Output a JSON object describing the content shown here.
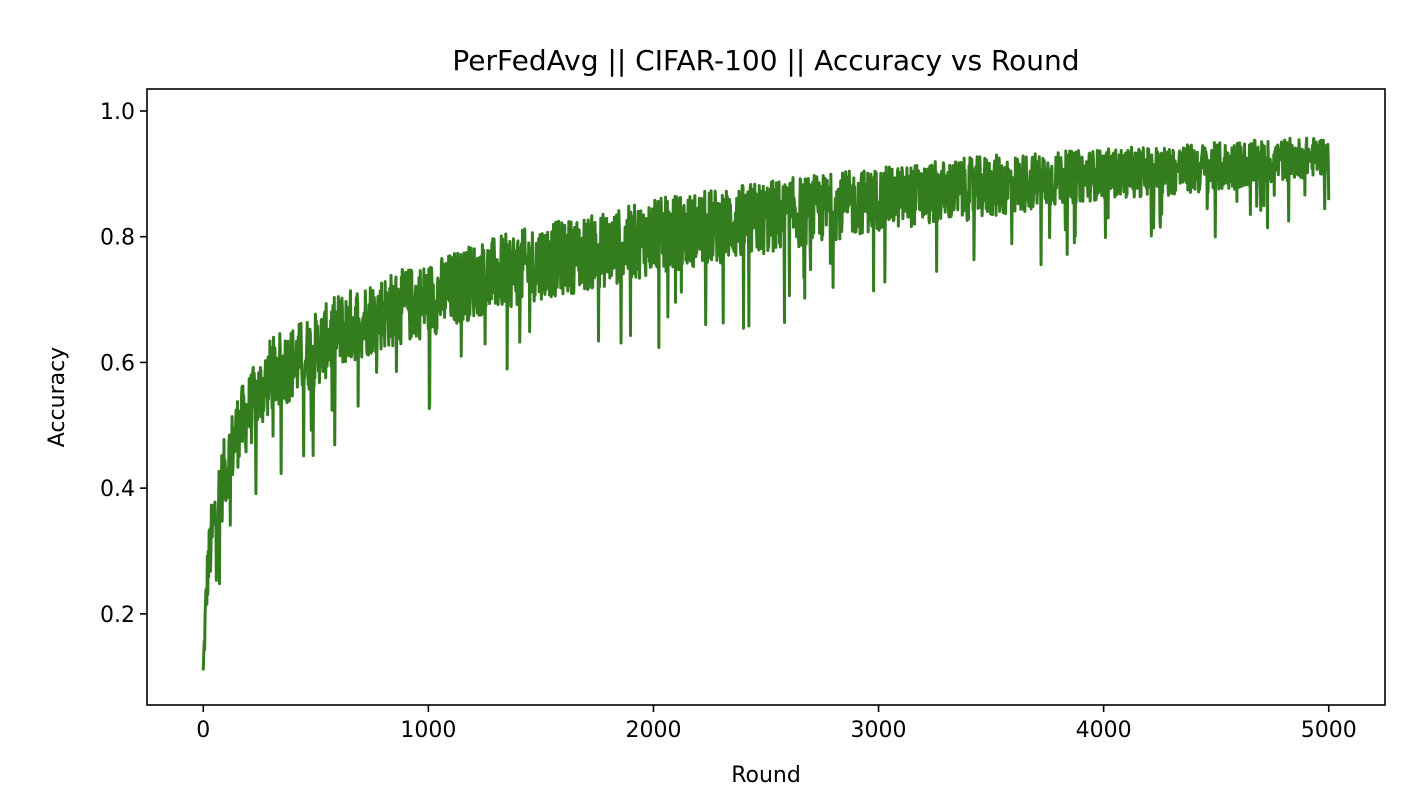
{
  "chart_data": {
    "type": "line",
    "title": "PerFedAvg || CIFAR-100 || Accuracy vs Round",
    "xlabel": "Round",
    "ylabel": "Accuracy",
    "xlim": [
      -250,
      5250
    ],
    "ylim": [
      0.055,
      1.035
    ],
    "xticks": [
      0,
      1000,
      2000,
      3000,
      4000,
      5000
    ],
    "yticks": [
      0.2,
      0.4,
      0.6,
      0.8,
      1.0
    ],
    "xtick_labels": [
      "0",
      "1000",
      "2000",
      "3000",
      "4000",
      "5000"
    ],
    "ytick_labels": [
      "0.2",
      "0.4",
      "0.6",
      "0.8",
      "1.0"
    ],
    "grid": false,
    "legend": "none",
    "series": [
      {
        "color": "#347d1f",
        "x": [
          0,
          10,
          20,
          40,
          60,
          80,
          100,
          150,
          200,
          300,
          400,
          500,
          600,
          800,
          1000,
          1200,
          1500,
          1800,
          2000,
          2500,
          3000,
          3500,
          4000,
          4500,
          5000
        ],
        "y_mean": [
          0.11,
          0.2,
          0.27,
          0.33,
          0.37,
          0.4,
          0.43,
          0.49,
          0.52,
          0.58,
          0.6,
          0.62,
          0.65,
          0.68,
          0.7,
          0.73,
          0.76,
          0.78,
          0.8,
          0.83,
          0.86,
          0.88,
          0.9,
          0.91,
          0.93
        ],
        "y_spread": [
          0.02,
          0.04,
          0.05,
          0.06,
          0.06,
          0.06,
          0.06,
          0.06,
          0.06,
          0.06,
          0.06,
          0.06,
          0.06,
          0.06,
          0.06,
          0.06,
          0.06,
          0.06,
          0.06,
          0.06,
          0.05,
          0.05,
          0.04,
          0.04,
          0.03
        ],
        "n_rounds": 5000,
        "min_point": [
          10,
          0.1
        ],
        "max_point": [
          4240,
          0.99
        ]
      }
    ]
  }
}
